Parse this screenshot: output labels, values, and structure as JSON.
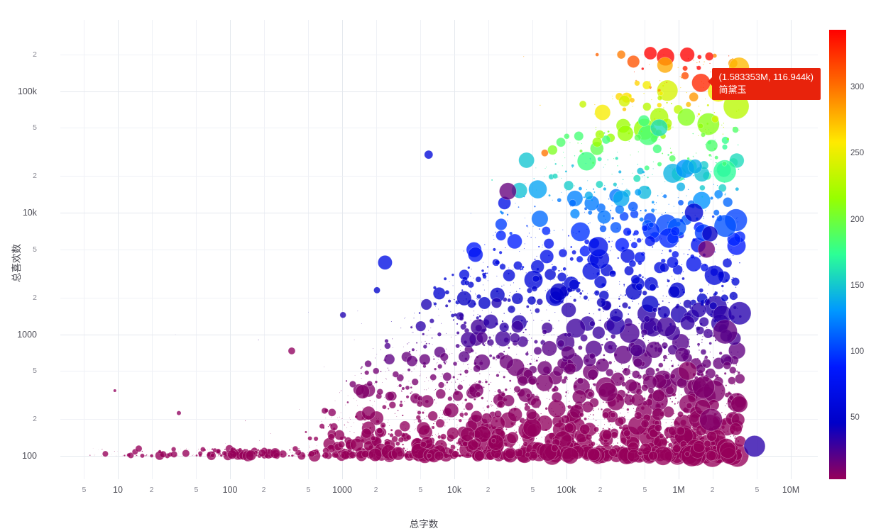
{
  "chart_data": {
    "type": "scatter",
    "title": "",
    "xlabel": "总字数",
    "ylabel": "总喜欢数",
    "x_scale": "log",
    "y_scale": "log",
    "x_range_log10": [
      0.55,
      7.25
    ],
    "y_range_log10": [
      1.95,
      5.45
    ],
    "grid": true,
    "legend": "colorbar-right",
    "x_ticks": [
      {
        "v": 5,
        "label": "5",
        "major": false
      },
      {
        "v": 10,
        "label": "10",
        "major": true
      },
      {
        "v": 20,
        "label": "2",
        "major": false
      },
      {
        "v": 50,
        "label": "5",
        "major": false
      },
      {
        "v": 100,
        "label": "100",
        "major": true
      },
      {
        "v": 200,
        "label": "2",
        "major": false
      },
      {
        "v": 500,
        "label": "5",
        "major": false
      },
      {
        "v": 1000,
        "label": "1000",
        "major": true
      },
      {
        "v": 2000,
        "label": "2",
        "major": false
      },
      {
        "v": 5000,
        "label": "5",
        "major": false
      },
      {
        "v": 10000,
        "label": "10k",
        "major": true
      },
      {
        "v": 20000,
        "label": "2",
        "major": false
      },
      {
        "v": 50000,
        "label": "5",
        "major": false
      },
      {
        "v": 100000,
        "label": "100k",
        "major": true
      },
      {
        "v": 200000,
        "label": "2",
        "major": false
      },
      {
        "v": 500000,
        "label": "5",
        "major": false
      },
      {
        "v": 1000000,
        "label": "1M",
        "major": true
      },
      {
        "v": 2000000,
        "label": "2",
        "major": false
      },
      {
        "v": 5000000,
        "label": "5",
        "major": false
      },
      {
        "v": 10000000,
        "label": "10M",
        "major": true
      }
    ],
    "y_ticks": [
      {
        "v": 100,
        "label": "100",
        "major": true
      },
      {
        "v": 200,
        "label": "2",
        "major": false
      },
      {
        "v": 500,
        "label": "5",
        "major": false
      },
      {
        "v": 1000,
        "label": "1000",
        "major": true
      },
      {
        "v": 2000,
        "label": "2",
        "major": false
      },
      {
        "v": 5000,
        "label": "5",
        "major": false
      },
      {
        "v": 10000,
        "label": "10k",
        "major": true
      },
      {
        "v": 20000,
        "label": "2",
        "major": false
      },
      {
        "v": 50000,
        "label": "5",
        "major": false
      },
      {
        "v": 100000,
        "label": "100k",
        "major": true
      },
      {
        "v": 200000,
        "label": "2",
        "major": false
      }
    ],
    "colorbar": {
      "vmin": 4,
      "vmax": 344,
      "ticks": [
        {
          "v": 300,
          "label": "300"
        },
        {
          "v": 250,
          "label": "250"
        },
        {
          "v": 200,
          "label": "200"
        },
        {
          "v": 150,
          "label": "150"
        },
        {
          "v": 100,
          "label": "100"
        },
        {
          "v": 50,
          "label": "50"
        }
      ],
      "stops": [
        [
          "0.000",
          "#96005A"
        ],
        [
          "0.125",
          "#0000C8"
        ],
        [
          "0.250",
          "#0019FF"
        ],
        [
          "0.375",
          "#0098FF"
        ],
        [
          "0.500",
          "#2CFF96"
        ],
        [
          "0.625",
          "#97FF00"
        ],
        [
          "0.750",
          "#FFEA00"
        ],
        [
          "0.875",
          "#FF6F00"
        ],
        [
          "1.000",
          "#FF0000"
        ]
      ]
    },
    "tooltip": {
      "coords_text": "(1.583353M, 116.944k)",
      "name": "简黛玉",
      "color": "#e8230c",
      "point": {
        "x": 1583353,
        "y": 116944
      }
    },
    "marker_opacity": 0.78,
    "notable_points": [
      [
        560000,
        205000,
        344,
        9
      ],
      [
        1583353,
        116944,
        330,
        13
      ],
      [
        3260000,
        75000,
        230,
        18
      ],
      [
        520000,
        112000,
        255,
        6
      ],
      [
        140000,
        78000,
        235,
        5
      ],
      [
        64000,
        31000,
        300,
        5
      ],
      [
        44000,
        27000,
        150,
        11
      ],
      [
        5900,
        30000,
        60,
        6
      ],
      [
        1140000,
        23000,
        130,
        13
      ],
      [
        1400000,
        24000,
        140,
        10
      ],
      [
        670000,
        50000,
        160,
        12
      ],
      [
        490000,
        57000,
        180,
        8
      ],
      [
        1370000,
        10000,
        55,
        13
      ],
      [
        1900000,
        6700,
        45,
        11
      ],
      [
        1770000,
        5000,
        15,
        12
      ],
      [
        2600000,
        1050,
        20,
        17
      ],
      [
        1940000,
        198,
        10,
        16
      ],
      [
        4750000,
        120,
        35,
        15
      ],
      [
        1200000,
        500,
        8,
        13
      ],
      [
        28000,
        12000,
        70,
        9
      ],
      [
        30000,
        15000,
        18,
        12
      ],
      [
        355,
        730,
        6,
        5
      ],
      [
        9.4,
        344,
        5,
        2
      ],
      [
        35,
        225,
        6,
        3
      ]
    ],
    "cloud": {
      "seed": 1337,
      "count": 4600,
      "x_main": {
        "min": 2.8,
        "max": 6.55,
        "pow": 0.6,
        "frac": 0.85
      },
      "x_mid": {
        "min": 1.8,
        "max": 4.6,
        "frac": 0.12
      },
      "x_far": {
        "min": 0.75,
        "max": 2.3,
        "frac": 0.03
      },
      "y_env": {
        "slope": 1.05,
        "intercept": -0.6,
        "cap": 5.3,
        "pow": 2.6
      },
      "y_outlier_frac": 0.03,
      "y_outlier_boost": 1.2,
      "color": {
        "pow": 2.2,
        "scale": 340,
        "base": 4,
        "noise": 0.25
      },
      "size": {
        "base": 0.6,
        "rand_pow": 6,
        "rand_scale": 16,
        "x_min_f": 0.35
      }
    }
  }
}
